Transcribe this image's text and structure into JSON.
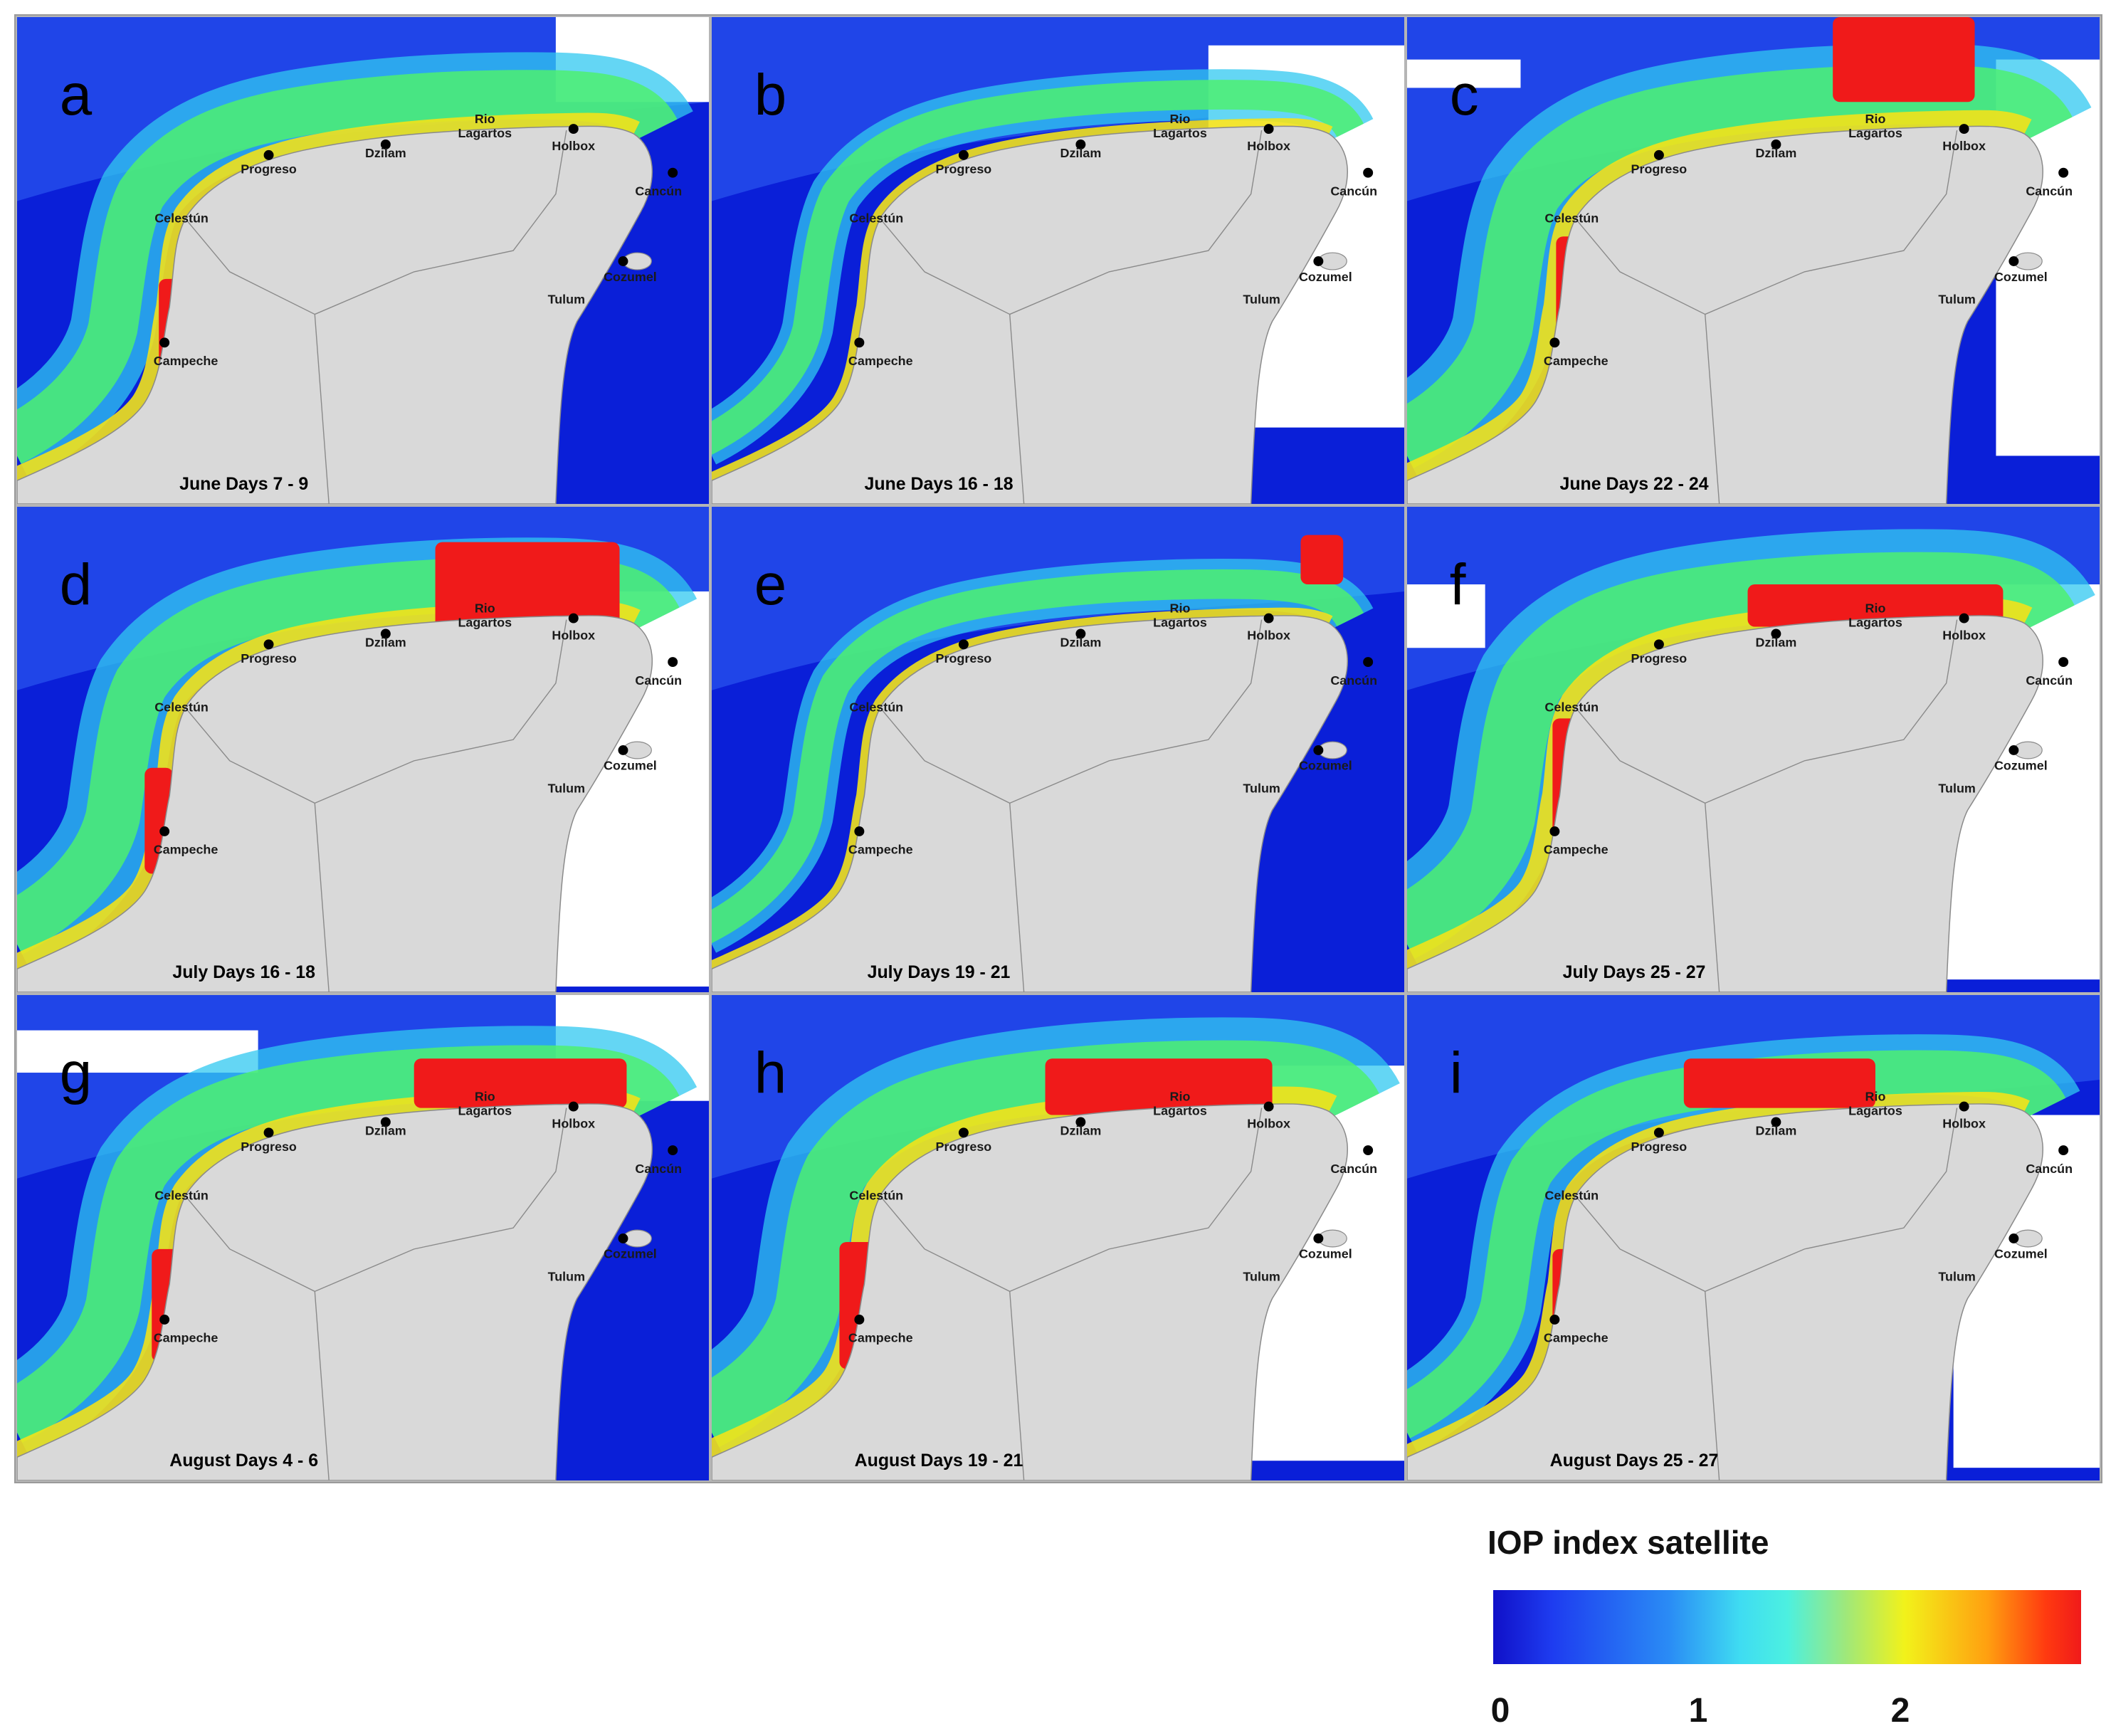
{
  "figure": {
    "panels": [
      {
        "letter": "a",
        "dates": "June Days 7 - 9"
      },
      {
        "letter": "b",
        "dates": "June Days 16 - 18"
      },
      {
        "letter": "c",
        "dates": "June Days 22 - 24"
      },
      {
        "letter": "d",
        "dates": "July Days 16 - 18"
      },
      {
        "letter": "e",
        "dates": "July Days 19 - 21"
      },
      {
        "letter": "f",
        "dates": "July Days 25 - 27"
      },
      {
        "letter": "g",
        "dates": "August Days 4 - 6"
      },
      {
        "letter": "h",
        "dates": "August Days 19 - 21"
      },
      {
        "letter": "i",
        "dates": "August Days 25 - 27"
      }
    ],
    "places": {
      "progreso": "Progreso",
      "dzilam": "Dzilam",
      "rio": "Rio",
      "lagartos": "Lagartos",
      "holbox": "Holbox",
      "cancun": "Cancún",
      "celestun": "Celestún",
      "cozumel": "Cozumel",
      "tulum": "Tulum",
      "campeche": "Campeche"
    },
    "legend": {
      "title": "IOP index satellite",
      "ticks": [
        "0",
        "1",
        "2"
      ]
    },
    "colors": {
      "ocean": "#0a1fd8",
      "land": "#d9d9d9",
      "nodata": "#ffffff",
      "low": "#1010c8",
      "mid": "#3fdcf2",
      "high": "#f01a1a"
    }
  }
}
